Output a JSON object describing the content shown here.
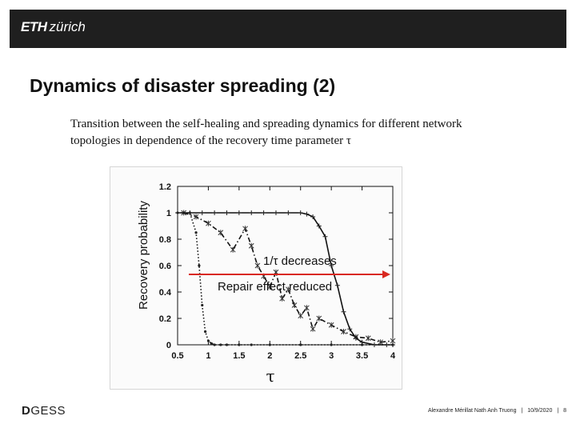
{
  "header": {
    "logo_eth": "ETH",
    "logo_zurich": "zürich"
  },
  "slide": {
    "title": "Dynamics of disaster spreading (2)",
    "caption_line1": "Transition between the self-healing and spreading dynamics for different network",
    "caption_line2": "topologies in dependence of the recovery time parameter τ"
  },
  "annotations": {
    "decrease": "1/τ decreases",
    "reduced": "Repair effect reduced",
    "arrow_color": "#d9281f"
  },
  "footer": {
    "logo_d": "D",
    "logo_rest": "GESS",
    "author": "Alexandre Mérillat Nath Anh Truong",
    "sep1": "|",
    "date": "10/9/2020",
    "sep2": "|",
    "page": "8"
  },
  "chart_data": {
    "type": "scatter",
    "xlabel": "τ",
    "ylabel": "Recovery probability",
    "xlim": [
      0.5,
      4
    ],
    "ylim": [
      0,
      1.2
    ],
    "xticks": [
      "0.5",
      "1",
      "1.5",
      "2",
      "2.5",
      "3",
      "3.5",
      "4"
    ],
    "yticks": [
      "0",
      "0.2",
      "0.4",
      "0.6",
      "0.8",
      "1",
      "1.2"
    ],
    "grid": false,
    "series": [
      {
        "marker": "dot",
        "line": "dotted",
        "x": [
          0.5,
          0.6,
          0.7,
          0.8,
          0.85,
          0.9,
          0.95,
          1.0,
          1.05,
          1.1,
          1.2,
          1.3,
          1.5,
          1.7,
          2.0,
          2.5,
          3.0,
          3.5,
          4.0
        ],
        "y": [
          1.0,
          1.0,
          1.0,
          0.85,
          0.6,
          0.3,
          0.1,
          0.03,
          0.01,
          0.0,
          0.0,
          0.0,
          0.0,
          0.0,
          0.0,
          0.0,
          0.0,
          0.0,
          0.0
        ]
      },
      {
        "marker": "star",
        "line": "dash-dot",
        "x": [
          0.6,
          0.8,
          1.0,
          1.2,
          1.4,
          1.6,
          1.7,
          1.8,
          1.9,
          2.0,
          2.1,
          2.2,
          2.3,
          2.4,
          2.5,
          2.6,
          2.7,
          2.8,
          3.0,
          3.2,
          3.4,
          3.6,
          3.8,
          4.0
        ],
        "y": [
          1.0,
          0.97,
          0.92,
          0.85,
          0.72,
          0.88,
          0.75,
          0.6,
          0.52,
          0.44,
          0.55,
          0.35,
          0.42,
          0.3,
          0.22,
          0.28,
          0.12,
          0.2,
          0.15,
          0.1,
          0.06,
          0.05,
          0.02,
          0.03
        ]
      },
      {
        "marker": "plus",
        "line": "solid",
        "x": [
          0.5,
          0.7,
          0.9,
          1.1,
          1.3,
          1.5,
          1.7,
          1.9,
          2.1,
          2.3,
          2.5,
          2.6,
          2.7,
          2.8,
          2.9,
          3.0,
          3.1,
          3.2,
          3.3,
          3.4,
          3.5,
          3.7,
          3.9,
          4.0
        ],
        "y": [
          1.0,
          1.0,
          1.0,
          1.0,
          1.0,
          1.0,
          1.0,
          1.0,
          1.0,
          1.0,
          1.0,
          0.99,
          0.97,
          0.9,
          0.82,
          0.6,
          0.45,
          0.25,
          0.12,
          0.05,
          0.02,
          0.0,
          0.0,
          0.0
        ]
      }
    ]
  }
}
